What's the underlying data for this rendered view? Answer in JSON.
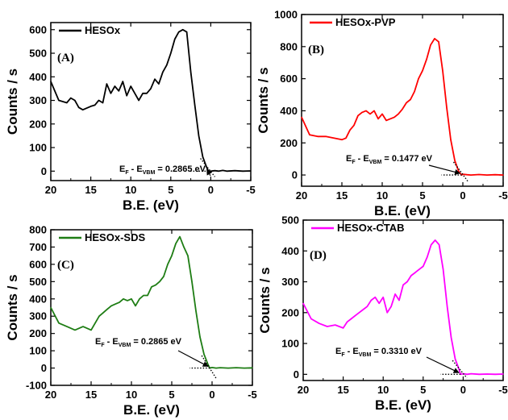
{
  "chart_data": [
    {
      "type": "line",
      "panel_label": "(A)",
      "legend": "HESOx",
      "color": "#000000",
      "xlabel": "B.E. (eV)",
      "ylabel": "Counts / s",
      "xlim": [
        20,
        -5
      ],
      "ylim": [
        -40,
        630
      ],
      "xticks": [
        20,
        15,
        10,
        5,
        0,
        -5
      ],
      "yticks": [
        0,
        100,
        200,
        300,
        400,
        500,
        600
      ],
      "annotation": {
        "e": "E",
        "f": "F",
        "dash": " - E",
        "vbm": "VBM",
        "value": " = 0.2865 eV"
      },
      "annotation_x": 0.2865,
      "x": [
        20,
        19,
        18,
        17.5,
        17,
        16.5,
        16,
        15,
        14.5,
        14,
        13.5,
        13,
        12.5,
        12,
        11.5,
        11,
        10.5,
        10,
        9.5,
        9,
        8.5,
        8,
        7.5,
        7,
        6.5,
        6,
        5.5,
        5,
        4.5,
        4,
        3.5,
        3,
        2.5,
        2,
        1.5,
        1,
        0.5,
        0.2865,
        0,
        -0.5,
        -1,
        -1.5,
        -2,
        -3,
        -4,
        -5
      ],
      "y": [
        380,
        300,
        290,
        310,
        300,
        270,
        260,
        275,
        280,
        300,
        290,
        370,
        330,
        360,
        340,
        380,
        320,
        360,
        330,
        300,
        330,
        330,
        350,
        390,
        370,
        420,
        450,
        500,
        560,
        590,
        600,
        590,
        420,
        280,
        150,
        60,
        15,
        0,
        0,
        2,
        0,
        3,
        0,
        2,
        0,
        1
      ]
    },
    {
      "type": "line",
      "panel_label": "(B)",
      "legend": "HESOx-PVP",
      "color": "#ff0000",
      "xlabel": "B.E. (eV)",
      "ylabel": "Counts / s",
      "xlim": [
        20,
        -5
      ],
      "ylim": [
        -70,
        1000
      ],
      "xticks": [
        20,
        15,
        10,
        5,
        0,
        -5
      ],
      "yticks": [
        0,
        200,
        400,
        600,
        800,
        1000
      ],
      "annotation": {
        "e": "E",
        "f": "F",
        "dash": " - E",
        "vbm": "VBM",
        "value": " = 0.1477 eV"
      },
      "annotation_x": 0.1477,
      "x": [
        20,
        19,
        18,
        17,
        16,
        15,
        14.5,
        14,
        13.5,
        13,
        12.5,
        12,
        11.5,
        11,
        10.5,
        10,
        9.5,
        9,
        8.5,
        8,
        7.5,
        7,
        6.5,
        6,
        5.5,
        5,
        4.5,
        4,
        3.5,
        3,
        2.5,
        2,
        1.5,
        1,
        0.5,
        0.1477,
        0,
        -0.5,
        -1,
        -2,
        -3,
        -4,
        -5
      ],
      "y": [
        360,
        250,
        240,
        240,
        230,
        220,
        230,
        280,
        310,
        370,
        390,
        400,
        380,
        400,
        350,
        380,
        340,
        350,
        360,
        380,
        410,
        450,
        470,
        520,
        600,
        650,
        720,
        810,
        850,
        830,
        650,
        420,
        220,
        90,
        20,
        0,
        5,
        2,
        0,
        3,
        0,
        2,
        0
      ]
    },
    {
      "type": "line",
      "panel_label": "(C)",
      "legend": "HESOx-SDS",
      "color": "#1e7d14",
      "xlabel": "B.E. (eV)",
      "ylabel": "Counts / s",
      "xlim": [
        20,
        -5
      ],
      "ylim": [
        -100,
        800
      ],
      "xticks": [
        20,
        15,
        10,
        5,
        0,
        -5
      ],
      "yticks": [
        -100,
        0,
        100,
        200,
        300,
        400,
        500,
        600,
        700,
        800
      ],
      "annotation": {
        "e": "E",
        "f": "F",
        "dash": " - E",
        "vbm": "VBM",
        "value": " = 0.2865 eV"
      },
      "annotation_x": 0.2865,
      "x": [
        20,
        19,
        18,
        17,
        16,
        15,
        14.5,
        14,
        13.5,
        13,
        12.5,
        12,
        11.5,
        11,
        10.5,
        10,
        9.5,
        9,
        8.5,
        8,
        7.5,
        7,
        6.5,
        6,
        5.5,
        5,
        4.5,
        4,
        3.5,
        3,
        2.5,
        2,
        1.5,
        1,
        0.5,
        0.2865,
        0,
        -0.5,
        -1,
        -2,
        -3,
        -4,
        -5
      ],
      "y": [
        350,
        260,
        240,
        220,
        240,
        220,
        260,
        300,
        320,
        340,
        360,
        370,
        380,
        400,
        390,
        400,
        360,
        400,
        420,
        420,
        470,
        480,
        500,
        530,
        600,
        650,
        720,
        760,
        700,
        650,
        500,
        330,
        180,
        80,
        20,
        0,
        3,
        0,
        2,
        0,
        2,
        0,
        1
      ]
    },
    {
      "type": "line",
      "panel_label": "(D)",
      "legend": "HESOx-CTAB",
      "color": "#ff00ff",
      "xlabel": "B.E. (eV)",
      "ylabel": "Counts / s",
      "xlim": [
        20,
        -5
      ],
      "ylim": [
        -20,
        500
      ],
      "xticks": [
        20,
        15,
        10,
        5,
        0,
        -5
      ],
      "yticks": [
        0,
        100,
        200,
        300,
        400,
        500
      ],
      "annotation": {
        "e": "E",
        "f": "F",
        "dash": " - E",
        "vbm": "VBM",
        "value": " = 0.3310 eV"
      },
      "annotation_x": 0.331,
      "x": [
        20,
        19,
        18,
        17,
        16,
        15,
        14.5,
        14,
        13.5,
        13,
        12.5,
        12,
        11.5,
        11,
        10.5,
        10,
        9.5,
        9,
        8.5,
        8,
        7.5,
        7,
        6.5,
        6,
        5.5,
        5,
        4.5,
        4,
        3.5,
        3,
        2.5,
        2,
        1.5,
        1,
        0.5,
        0.331,
        0,
        -0.5,
        -1,
        -2,
        -3,
        -4,
        -5
      ],
      "y": [
        230,
        180,
        165,
        155,
        160,
        150,
        170,
        180,
        190,
        200,
        210,
        220,
        240,
        250,
        230,
        250,
        200,
        220,
        260,
        240,
        290,
        300,
        320,
        330,
        340,
        350,
        380,
        420,
        435,
        420,
        340,
        220,
        120,
        50,
        15,
        0,
        2,
        0,
        2,
        0,
        1,
        0,
        1
      ]
    }
  ]
}
